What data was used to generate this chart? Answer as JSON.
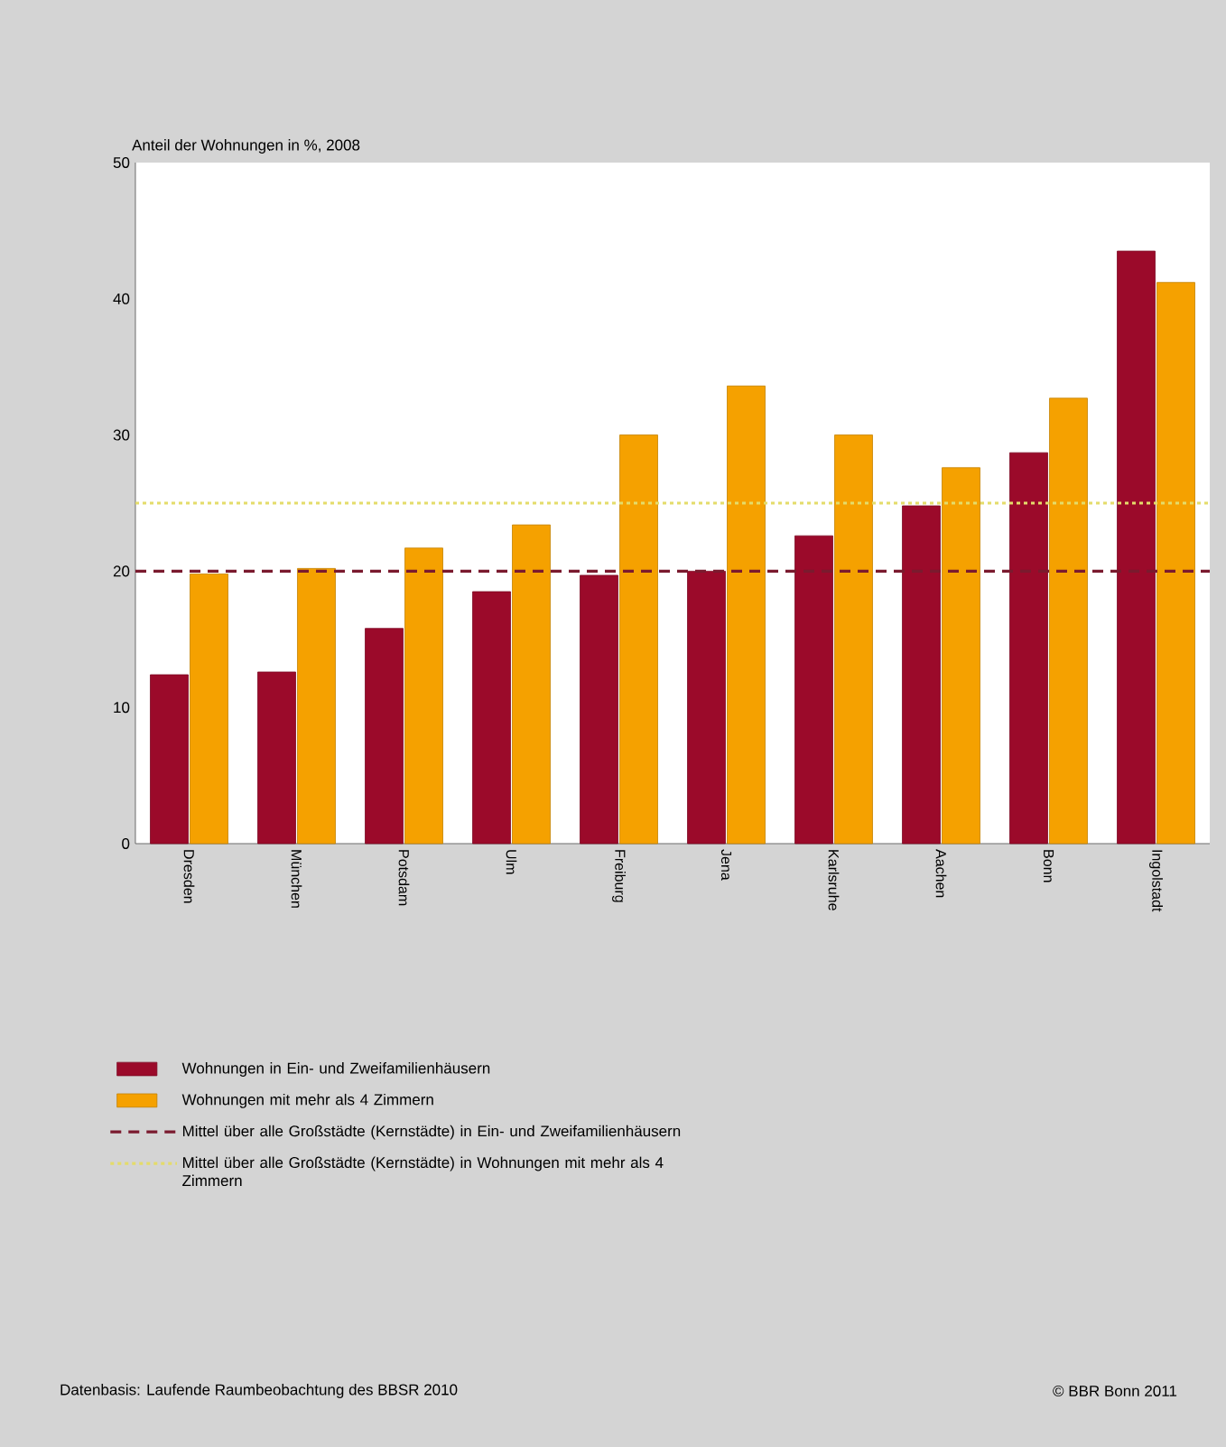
{
  "chart_data": {
    "type": "bar",
    "title": "Anteil der Wohnungen in %, 2008",
    "categories": [
      "Dresden",
      "München",
      "Potsdam",
      "Ulm",
      "Freiburg",
      "Jena",
      "Karlsruhe",
      "Aachen",
      "Bonn",
      "Ingolstadt"
    ],
    "series": [
      {
        "name": "Wohnungen in Ein- und Zweifamilienhäusern",
        "color": "#9b0a2a",
        "values": [
          12.4,
          12.6,
          15.8,
          18.5,
          19.7,
          20.0,
          22.6,
          24.8,
          28.7,
          43.5
        ]
      },
      {
        "name": "Wohnungen mit mehr als 4 Zimmern",
        "color": "#f5a100",
        "values": [
          19.8,
          20.2,
          21.7,
          23.4,
          30.0,
          33.6,
          30.0,
          27.6,
          32.7,
          41.2
        ]
      }
    ],
    "ylim": [
      0,
      50
    ],
    "yticks": [
      0,
      10,
      20,
      30,
      40,
      50
    ],
    "ref_lines": [
      {
        "axis": "y",
        "value": 20,
        "label": "Mittel über alle Großstädte (Kernstädte) in Ein- und Zweifamilienhäusern",
        "color": "#7a1a2e",
        "line_style": "dashed"
      },
      {
        "axis": "y",
        "value": 25,
        "label": "Mittel über alle Großstädte (Kernstädte) in Wohnungen mit mehr als 4 Zimmern",
        "color": "#e4dc6a",
        "line_style": "dotted"
      }
    ],
    "legend": "bottom",
    "annotations": [
      "Datenbasis: Laufende Raumbeobachtung des BBSR 2010",
      "© BBR Bonn 2011"
    ]
  }
}
